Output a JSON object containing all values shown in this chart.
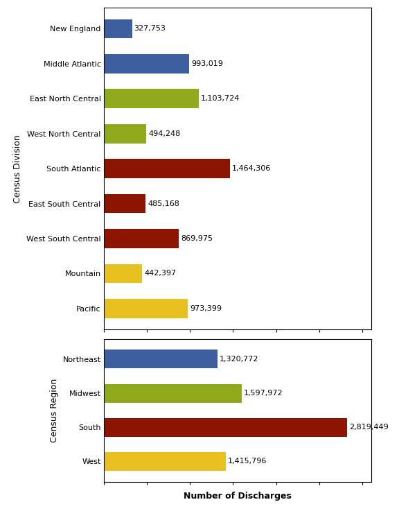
{
  "division_labels": [
    "New England",
    "Middle Atlantic",
    "East North Central",
    "West North Central",
    "South Atlantic",
    "East South Central",
    "West South Central",
    "Mountain",
    "Pacific"
  ],
  "division_values": [
    327753,
    993019,
    1103724,
    494248,
    1464306,
    485168,
    869975,
    442397,
    973399
  ],
  "division_colors": [
    "#3d5fa0",
    "#3d5fa0",
    "#8faa1a",
    "#8faa1a",
    "#8b1500",
    "#8b1500",
    "#8b1500",
    "#e8c020",
    "#e8c020"
  ],
  "division_labels_formatted": [
    "327,753",
    "993,019",
    "1,103,724",
    "494,248",
    "1,464,306",
    "485,168",
    "869,975",
    "442,397",
    "973,399"
  ],
  "region_labels": [
    "Northeast",
    "Midwest",
    "South",
    "West"
  ],
  "region_values": [
    1320772,
    1597972,
    2819449,
    1415796
  ],
  "region_colors": [
    "#3d5fa0",
    "#8faa1a",
    "#8b1500",
    "#e8c020"
  ],
  "region_labels_formatted": [
    "1,320,772",
    "1,597,972",
    "2,819,449",
    "1,415,796"
  ],
  "xlabel": "Number of Discharges",
  "division_ylabel": "Census Division",
  "region_ylabel": "Census Region",
  "xlim": [
    0,
    3100000
  ],
  "background_color": "#ffffff",
  "bar_height": 0.55,
  "label_fontsize": 8,
  "axis_label_fontsize": 9,
  "value_fontsize": 8
}
